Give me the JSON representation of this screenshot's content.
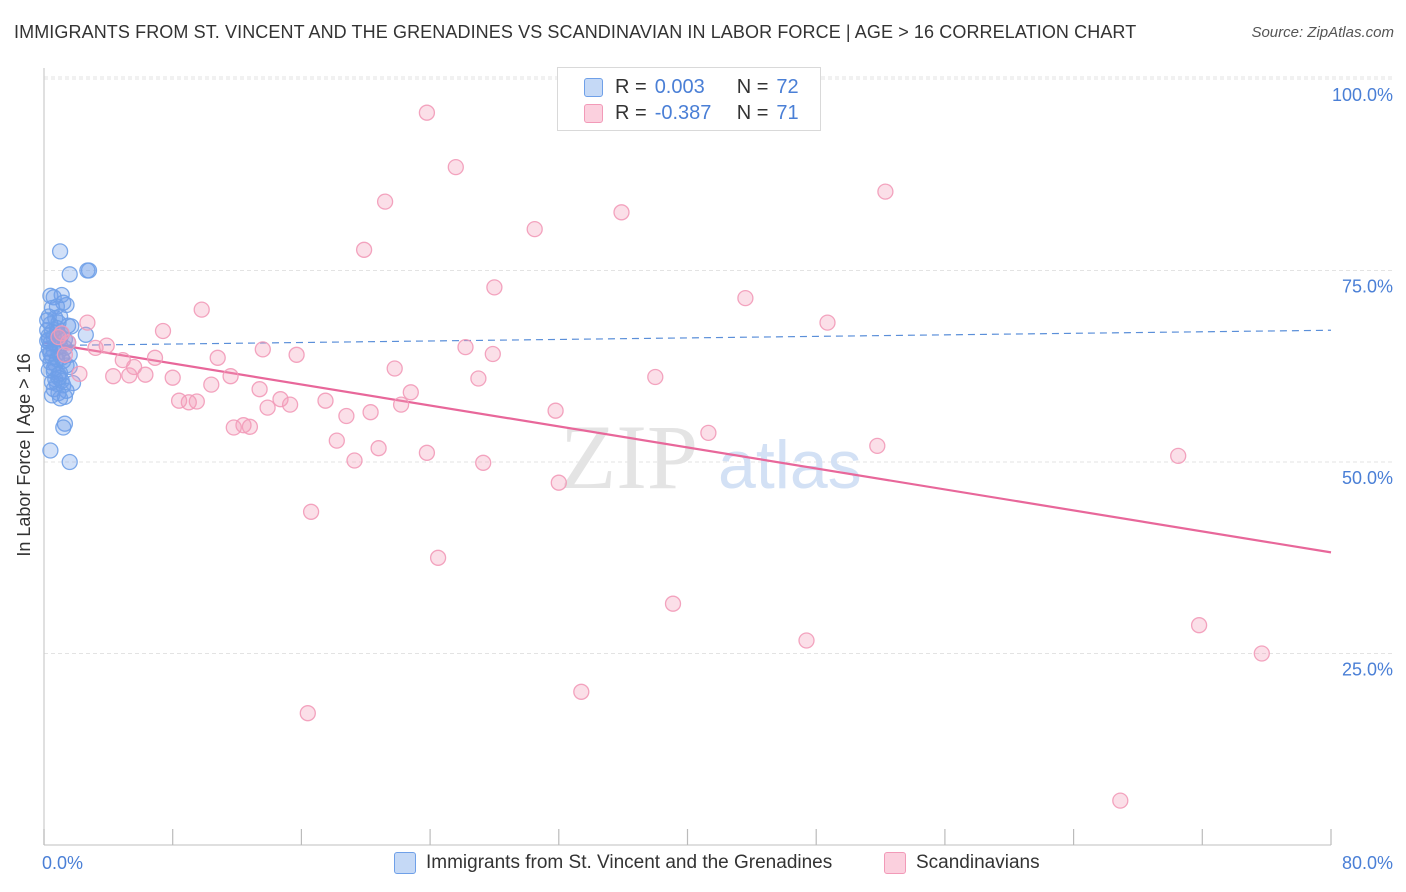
{
  "title": "IMMIGRANTS FROM ST. VINCENT AND THE GRENADINES VS SCANDINAVIAN IN LABOR FORCE | AGE > 16 CORRELATION CHART",
  "source": "Source: ZipAtlas.com",
  "watermark": {
    "zip": "ZIP",
    "atlas": "atlas"
  },
  "legend": {
    "r_label": "R =",
    "n_label": "N =",
    "rows": [
      {
        "r": "0.003",
        "n": "72",
        "color": "#6fa0e8"
      },
      {
        "r": "-0.387",
        "n": "71",
        "color": "#f29ab8"
      }
    ]
  },
  "bottom_legend": [
    {
      "label": "Immigrants from St. Vincent and the Grenadines",
      "color": "#6fa0e8"
    },
    {
      "label": "Scandinavians",
      "color": "#f29ab8"
    }
  ],
  "colors": {
    "blue": "#6fa0e8",
    "pink": "#f29ab8",
    "blue_line": "#5b8fd9",
    "pink_line": "#e8679a",
    "tick_text": "#4a7fd6",
    "grid": "#e3e3e3"
  },
  "chart_data": {
    "type": "scatter",
    "title": "IMMIGRANTS FROM ST. VINCENT AND THE GRENADINES VS SCANDINAVIAN IN LABOR FORCE | AGE > 16 CORRELATION CHART",
    "xlabel": "",
    "ylabel": "In Labor Force | Age > 16",
    "xlim": [
      0,
      80
    ],
    "ylim": [
      0,
      105
    ],
    "x_tick_labels": [
      "0.0%",
      "80.0%"
    ],
    "y_ticks": [
      25,
      50,
      75,
      100
    ],
    "y_tick_labels": [
      "25.0%",
      "50.0%",
      "75.0%",
      "100.0%"
    ],
    "grid": true,
    "legend_position": "top-center",
    "series": [
      {
        "name": "Immigrants from St. Vincent and the Grenadines",
        "color": "#6fa0e8",
        "trend": {
          "x": [
            0,
            80
          ],
          "y": [
            65.2,
            67.2
          ],
          "style": "dashed"
        },
        "points": [
          [
            1.0,
            77.5
          ],
          [
            1.6,
            74.5
          ],
          [
            2.8,
            75.0
          ],
          [
            2.7,
            75.0
          ],
          [
            0.4,
            71.7
          ],
          [
            0.6,
            71.5
          ],
          [
            1.1,
            71.8
          ],
          [
            1.2,
            70.8
          ],
          [
            1.4,
            70.5
          ],
          [
            0.8,
            70.3
          ],
          [
            0.5,
            70.1
          ],
          [
            0.3,
            69.0
          ],
          [
            0.7,
            68.8
          ],
          [
            1.0,
            69.0
          ],
          [
            0.4,
            68.0
          ],
          [
            0.9,
            68.2
          ],
          [
            1.5,
            67.8
          ],
          [
            1.7,
            67.7
          ],
          [
            0.2,
            67.2
          ],
          [
            0.5,
            67.0
          ],
          [
            0.8,
            66.9
          ],
          [
            1.1,
            66.7
          ],
          [
            2.6,
            66.6
          ],
          [
            0.3,
            66.5
          ],
          [
            0.6,
            66.3
          ],
          [
            1.0,
            66.1
          ],
          [
            1.3,
            66.0
          ],
          [
            0.2,
            65.8
          ],
          [
            0.4,
            65.5
          ],
          [
            0.7,
            65.3
          ],
          [
            1.0,
            65.1
          ],
          [
            0.3,
            64.8
          ],
          [
            0.6,
            64.5
          ],
          [
            0.9,
            64.3
          ],
          [
            1.6,
            64.0
          ],
          [
            0.2,
            63.9
          ],
          [
            0.5,
            63.7
          ],
          [
            0.8,
            63.4
          ],
          [
            1.2,
            63.2
          ],
          [
            0.4,
            63.0
          ],
          [
            0.7,
            62.8
          ],
          [
            1.4,
            62.6
          ],
          [
            1.6,
            62.4
          ],
          [
            0.3,
            62.0
          ],
          [
            0.6,
            61.8
          ],
          [
            1.0,
            61.6
          ],
          [
            0.9,
            61.0
          ],
          [
            0.7,
            60.8
          ],
          [
            1.1,
            60.6
          ],
          [
            0.5,
            60.4
          ],
          [
            0.8,
            60.2
          ],
          [
            1.2,
            60.0
          ],
          [
            1.8,
            60.3
          ],
          [
            0.6,
            59.5
          ],
          [
            1.4,
            59.3
          ],
          [
            0.9,
            59.0
          ],
          [
            0.5,
            58.7
          ],
          [
            1.3,
            58.5
          ],
          [
            1.0,
            58.3
          ],
          [
            1.3,
            55.0
          ],
          [
            1.2,
            54.5
          ],
          [
            0.4,
            51.5
          ],
          [
            1.6,
            50.0
          ],
          [
            0.3,
            66.0
          ],
          [
            0.4,
            64.2
          ],
          [
            0.6,
            62.2
          ],
          [
            0.9,
            61.4
          ],
          [
            1.1,
            63.6
          ],
          [
            1.5,
            65.6
          ],
          [
            0.2,
            68.5
          ],
          [
            0.8,
            67.5
          ],
          [
            1.3,
            64.9
          ]
        ]
      },
      {
        "name": "Scandinavians",
        "color": "#f29ab8",
        "trend": {
          "x": [
            0,
            80
          ],
          "y": [
            65.6,
            38.2
          ],
          "style": "solid"
        },
        "points": [
          [
            23.8,
            95.6
          ],
          [
            25.6,
            88.5
          ],
          [
            21.2,
            84.0
          ],
          [
            35.9,
            82.6
          ],
          [
            30.5,
            80.4
          ],
          [
            52.3,
            85.3
          ],
          [
            19.9,
            77.7
          ],
          [
            28.0,
            72.8
          ],
          [
            43.6,
            71.4
          ],
          [
            9.8,
            69.9
          ],
          [
            48.7,
            68.2
          ],
          [
            2.7,
            68.2
          ],
          [
            7.4,
            67.1
          ],
          [
            3.9,
            65.2
          ],
          [
            3.2,
            64.9
          ],
          [
            1.1,
            66.8
          ],
          [
            1.5,
            65.6
          ],
          [
            0.9,
            66.3
          ],
          [
            26.2,
            65.0
          ],
          [
            13.6,
            64.7
          ],
          [
            15.7,
            64.0
          ],
          [
            27.9,
            64.1
          ],
          [
            10.8,
            63.6
          ],
          [
            4.9,
            63.3
          ],
          [
            6.9,
            63.6
          ],
          [
            5.6,
            62.4
          ],
          [
            21.8,
            62.2
          ],
          [
            2.2,
            61.5
          ],
          [
            4.3,
            61.2
          ],
          [
            5.3,
            61.3
          ],
          [
            6.3,
            61.4
          ],
          [
            8.0,
            61.0
          ],
          [
            11.6,
            61.2
          ],
          [
            27.0,
            60.9
          ],
          [
            38.0,
            61.1
          ],
          [
            10.4,
            60.1
          ],
          [
            13.4,
            59.5
          ],
          [
            22.8,
            59.1
          ],
          [
            8.4,
            58.0
          ],
          [
            9.0,
            57.8
          ],
          [
            9.5,
            57.9
          ],
          [
            14.7,
            58.2
          ],
          [
            17.5,
            58.0
          ],
          [
            13.9,
            57.1
          ],
          [
            15.3,
            57.5
          ],
          [
            22.2,
            57.5
          ],
          [
            18.8,
            56.0
          ],
          [
            20.3,
            56.5
          ],
          [
            31.8,
            56.7
          ],
          [
            11.8,
            54.5
          ],
          [
            12.4,
            54.8
          ],
          [
            12.8,
            54.6
          ],
          [
            18.2,
            52.8
          ],
          [
            20.8,
            51.8
          ],
          [
            41.3,
            53.8
          ],
          [
            51.8,
            52.1
          ],
          [
            23.8,
            51.2
          ],
          [
            19.3,
            50.2
          ],
          [
            27.3,
            49.9
          ],
          [
            70.5,
            50.8
          ],
          [
            32.0,
            47.3
          ],
          [
            16.6,
            43.5
          ],
          [
            24.5,
            37.5
          ],
          [
            39.1,
            31.5
          ],
          [
            47.4,
            26.7
          ],
          [
            71.8,
            28.7
          ],
          [
            75.7,
            25.0
          ],
          [
            33.4,
            20.0
          ],
          [
            16.4,
            17.2
          ],
          [
            66.9,
            5.8
          ],
          [
            1.3,
            64.0
          ]
        ]
      }
    ]
  }
}
